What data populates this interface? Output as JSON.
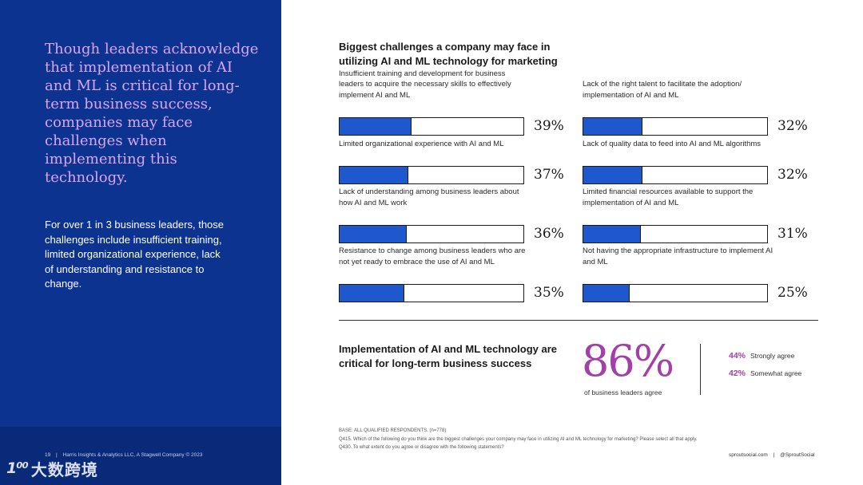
{
  "left": {
    "headline": "Though leaders acknowledge that implementation of AI and ML is critical for long-term business success, companies may face challenges when implementing this technology.",
    "subtext": "For over 1 in 3 business leaders, those challenges include insufficient training, limited organizational experience, lack of understanding and resistance to change.",
    "footer_page": "19",
    "footer_sep": "|",
    "footer_company": "Harris Insights & Analytics LLC, A Stagwell Company © 2023",
    "watermark_logo": "1⁰⁰",
    "watermark_text": "大数跨境"
  },
  "colors": {
    "panel": "#0d3390",
    "headline": "#d9a5f0",
    "bar": "#1f57cc",
    "accent": "#a33fa8"
  },
  "chart_data": {
    "type": "bar",
    "orientation": "horizontal",
    "title": "Biggest challenges a company may face in utilizing AI and ML technology for marketing",
    "unit": "%",
    "xlim": [
      0,
      100
    ],
    "categories": [
      "Insufficient training and development for business leaders to acquire the necessary skills to effectively implement AI and ML",
      "Limited organizational experience with AI and ML",
      "Lack of understanding among business leaders about how AI and ML work",
      "Resistance to change among business leaders who are not yet ready to embrace the use of AI and ML",
      "Lack of the right talent to facilitate the adoption/ implementation of AI and ML",
      "Lack of quality data to feed into AI and ML algorithms",
      "Limited financial resources available to support the implementation of AI and ML",
      "Not having the appropriate infrastructure to implement AI and ML"
    ],
    "values": [
      39,
      37,
      36,
      35,
      32,
      32,
      31,
      25
    ],
    "value_labels": [
      "39%",
      "37%",
      "36%",
      "35%",
      "32%",
      "32%",
      "31%",
      "25%"
    ]
  },
  "implementation": {
    "title": "Implementation of AI and ML technology are critical for long-term business success",
    "big_value": "86%",
    "caption": "of business leaders agree",
    "breakdown": [
      {
        "pct": "44%",
        "label": "Strongly agree"
      },
      {
        "pct": "42%",
        "label": "Somewhat agree"
      }
    ]
  },
  "notes": {
    "base": "BASE: ALL QUALIFIED RESPONDENTS, (n=778)",
    "q1": "Q415. Which of the following do you think are the biggest challenges your company may face in utilizing AI and ML technology for marketing? Please select all that apply.",
    "q2": "Q430. To what extent do you agree or disagree with the following statements?"
  },
  "footer_right": {
    "site": "sproutsocial.com",
    "sep": "|",
    "handle": "@SproutSocial"
  }
}
